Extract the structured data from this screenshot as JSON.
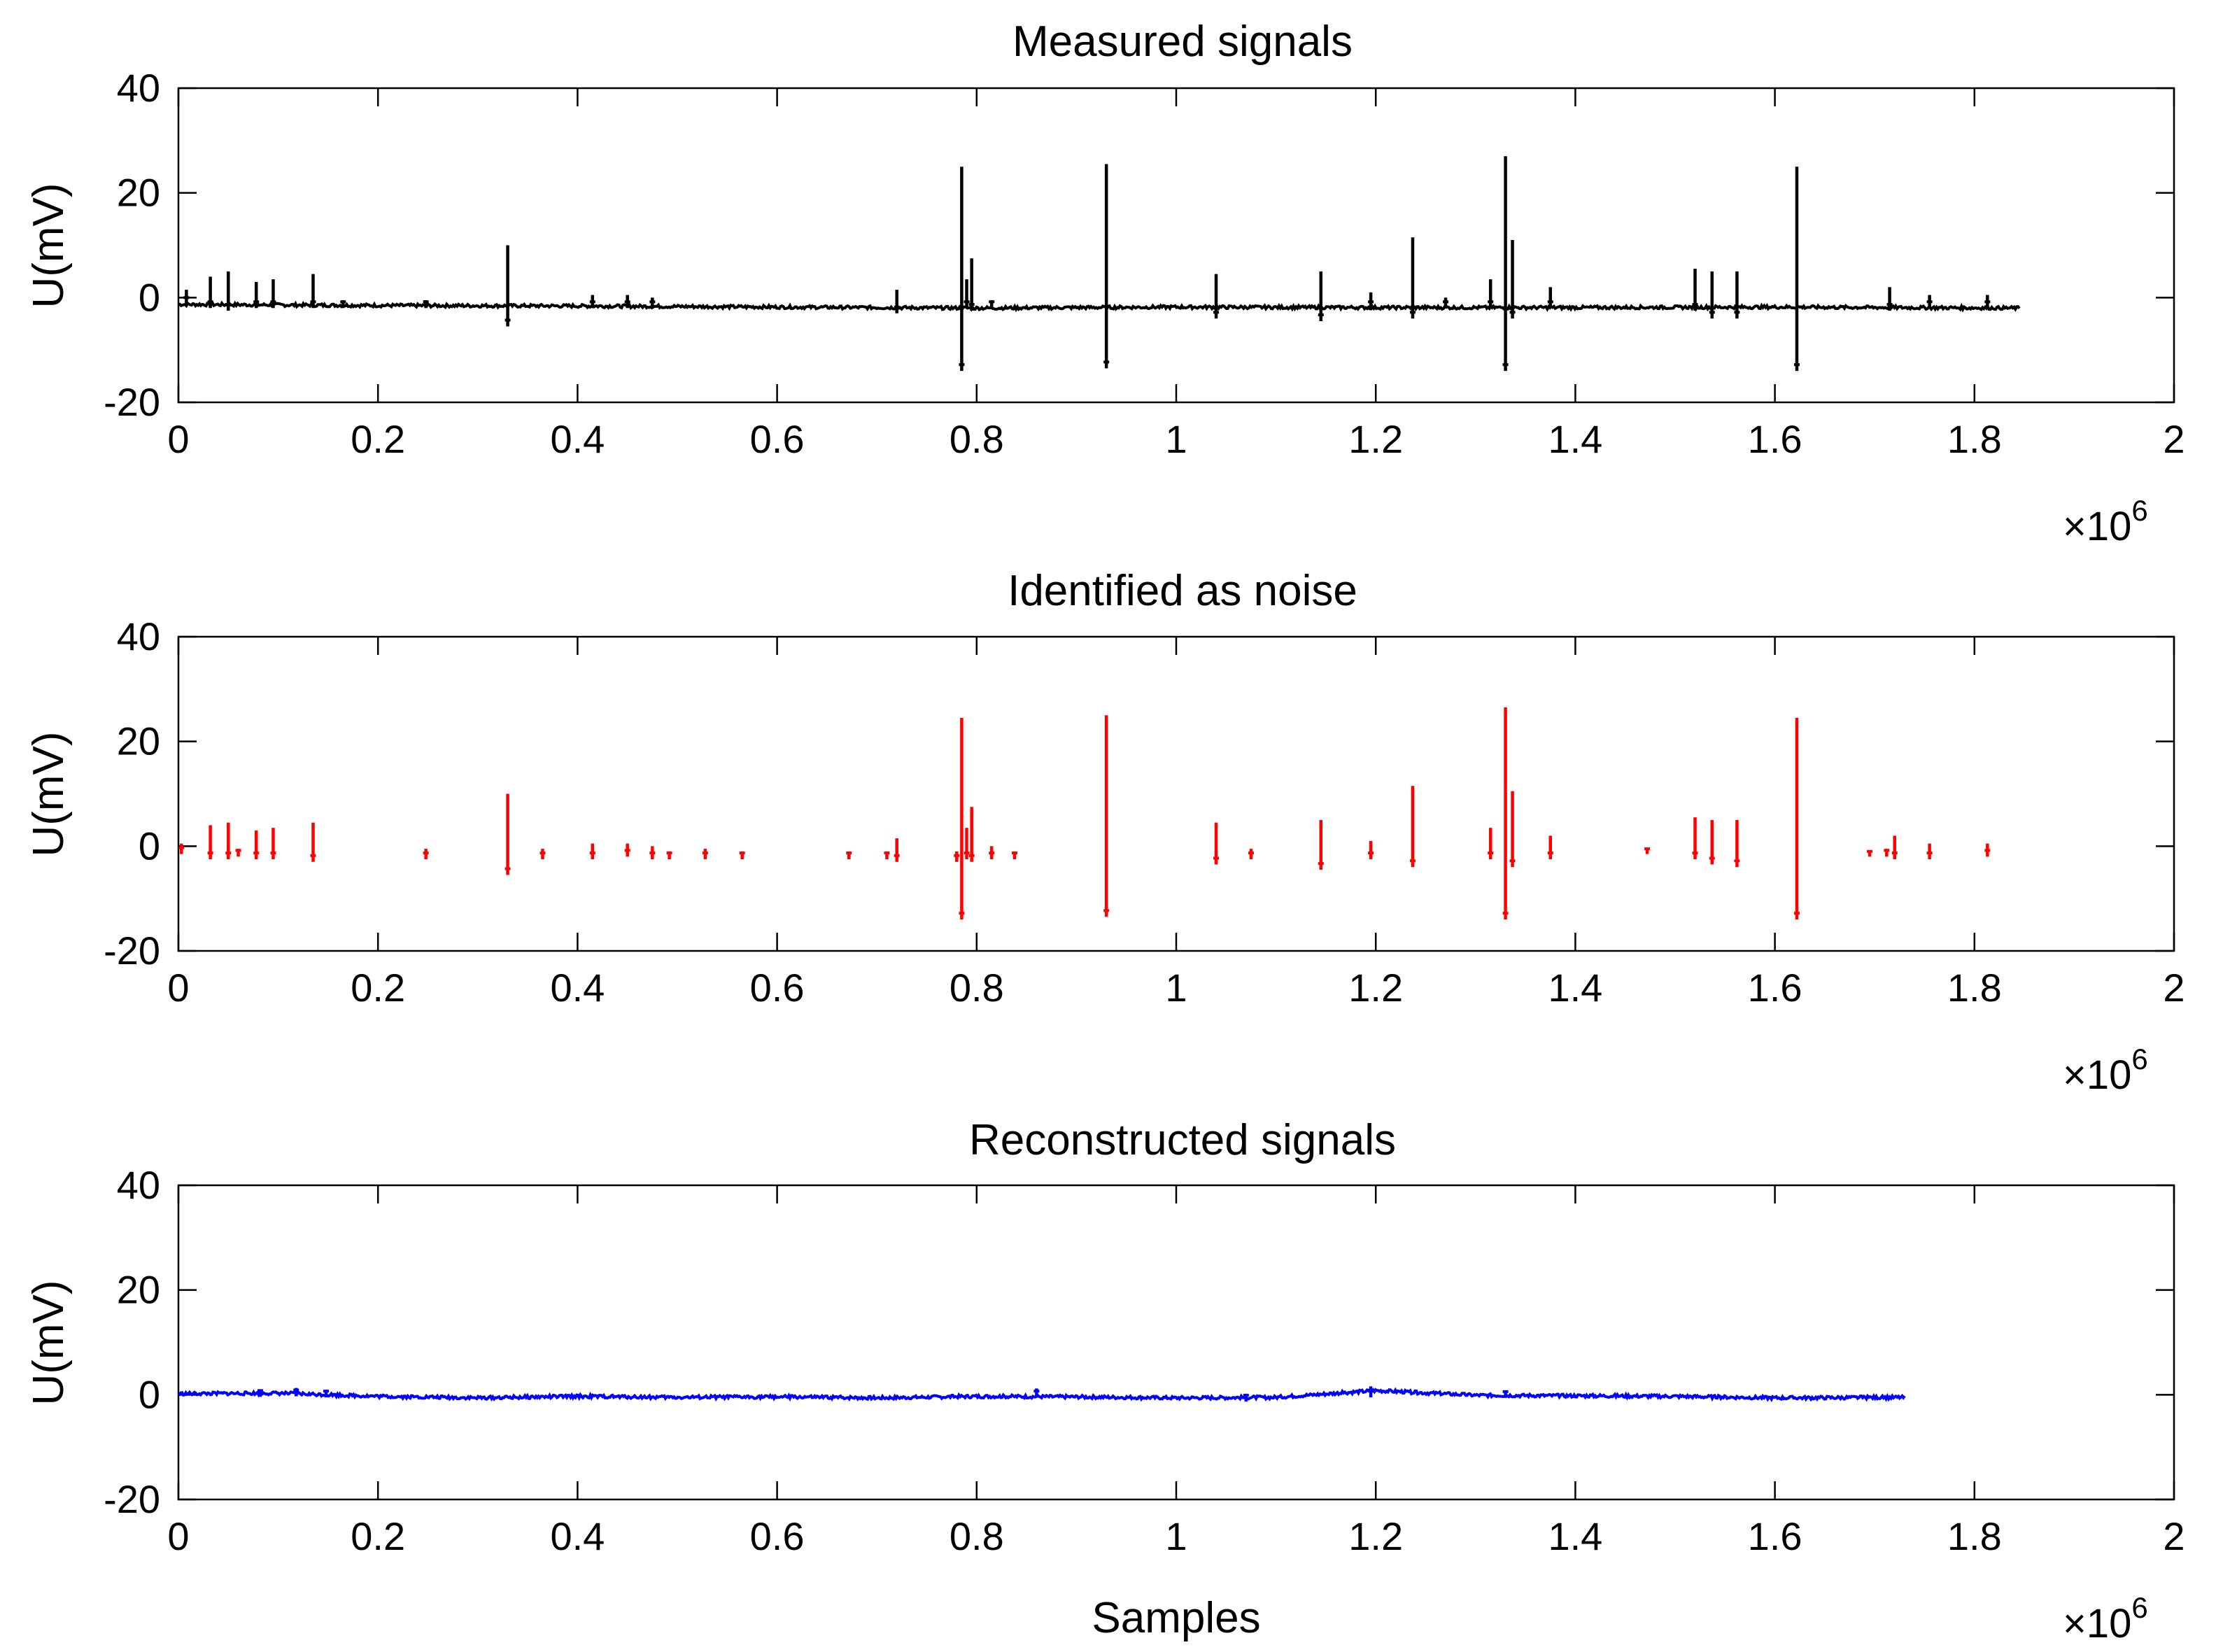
{
  "figure": {
    "shared_xlabel": "Samples",
    "xscale_factor_base": "×10",
    "xscale_factor_exp": "6"
  },
  "chart_data": [
    {
      "type": "line",
      "title": "Measured signals",
      "ylabel": "U(mV)",
      "xlabel": "",
      "xlim": [
        0,
        2
      ],
      "ylim": [
        -20,
        40
      ],
      "xticks": [
        0,
        0.2,
        0.4,
        0.6,
        0.8,
        1,
        1.2,
        1.4,
        1.6,
        1.8,
        2
      ],
      "xtick_labels": [
        "0",
        "0.2",
        "0.4",
        "0.6",
        "0.8",
        "1",
        "1.2",
        "1.4",
        "1.6",
        "1.8",
        "2"
      ],
      "yticks": [
        -20,
        0,
        20,
        40
      ],
      "ytick_labels": [
        "-20",
        "0",
        "20",
        "40"
      ],
      "x_unit_scale": "×10^6",
      "color": "#000000",
      "baseline": [
        [
          0,
          -1.3
        ],
        [
          0.2,
          -1.5
        ],
        [
          0.4,
          -1.6
        ],
        [
          0.6,
          -1.8
        ],
        [
          0.8,
          -2.0
        ],
        [
          1.0,
          -1.8
        ],
        [
          1.2,
          -1.9
        ],
        [
          1.4,
          -1.9
        ],
        [
          1.6,
          -1.8
        ],
        [
          1.845,
          -2.0
        ]
      ],
      "spikes": [
        [
          0.008,
          1.5,
          -1.2
        ],
        [
          0.032,
          4,
          -2
        ],
        [
          0.05,
          5,
          -2.5
        ],
        [
          0.078,
          3,
          -2
        ],
        [
          0.095,
          3.5,
          -2
        ],
        [
          0.135,
          4.5,
          -2
        ],
        [
          0.165,
          -0.5,
          -2
        ],
        [
          0.248,
          -0.5,
          -2
        ],
        [
          0.33,
          10,
          -5.5
        ],
        [
          0.415,
          0.5,
          -2
        ],
        [
          0.45,
          0.5,
          -2
        ],
        [
          0.475,
          0,
          -2
        ],
        [
          0.72,
          1.5,
          -3
        ],
        [
          0.785,
          25,
          -14
        ],
        [
          0.79,
          3.5,
          -2
        ],
        [
          0.795,
          7.5,
          -2.5
        ],
        [
          0.815,
          -0.5,
          -2
        ],
        [
          0.93,
          25.5,
          -13.5
        ],
        [
          1.04,
          4.5,
          -4
        ],
        [
          1.145,
          5,
          -4.5
        ],
        [
          1.195,
          1,
          -2
        ],
        [
          1.237,
          11.5,
          -4
        ],
        [
          1.27,
          0,
          -2
        ],
        [
          1.315,
          3.5,
          -2
        ],
        [
          1.33,
          27,
          -14
        ],
        [
          1.337,
          11,
          -4
        ],
        [
          1.375,
          2,
          -2
        ],
        [
          1.52,
          5.5,
          -2.5
        ],
        [
          1.537,
          5,
          -4
        ],
        [
          1.562,
          5,
          -4
        ],
        [
          1.622,
          25,
          -14
        ],
        [
          1.715,
          2,
          -2.5
        ],
        [
          1.755,
          0.5,
          -2
        ],
        [
          1.813,
          0.5,
          -2
        ]
      ]
    },
    {
      "type": "line",
      "title": "Identified as noise",
      "ylabel": "U(mV)",
      "xlabel": "",
      "xlim": [
        0,
        2
      ],
      "ylim": [
        -20,
        40
      ],
      "xticks": [
        0,
        0.2,
        0.4,
        0.6,
        0.8,
        1,
        1.2,
        1.4,
        1.6,
        1.8,
        2
      ],
      "xtick_labels": [
        "0",
        "0.2",
        "0.4",
        "0.6",
        "0.8",
        "1",
        "1.2",
        "1.4",
        "1.6",
        "1.8",
        "2"
      ],
      "yticks": [
        -20,
        0,
        20,
        40
      ],
      "ytick_labels": [
        "-20",
        "0",
        "20",
        "40"
      ],
      "x_unit_scale": "×10^6",
      "color": "#ff0000",
      "baseline": [],
      "spikes": [
        [
          0.003,
          0.5,
          -1.5
        ],
        [
          0.032,
          4,
          -2.5
        ],
        [
          0.05,
          4.5,
          -2.5
        ],
        [
          0.06,
          -0.5,
          -2
        ],
        [
          0.078,
          3,
          -2.5
        ],
        [
          0.095,
          3.5,
          -2.5
        ],
        [
          0.135,
          4.5,
          -3
        ],
        [
          0.248,
          -0.5,
          -2.5
        ],
        [
          0.33,
          10,
          -5.5
        ],
        [
          0.365,
          -0.5,
          -2.5
        ],
        [
          0.415,
          0.5,
          -2.5
        ],
        [
          0.45,
          0.5,
          -2
        ],
        [
          0.475,
          0,
          -2.5
        ],
        [
          0.492,
          -1,
          -2.5
        ],
        [
          0.528,
          -0.5,
          -2.5
        ],
        [
          0.565,
          -1,
          -2.5
        ],
        [
          0.672,
          -1,
          -2.5
        ],
        [
          0.71,
          -1,
          -2.5
        ],
        [
          0.72,
          1.5,
          -3
        ],
        [
          0.78,
          -1,
          -3
        ],
        [
          0.785,
          24.5,
          -14
        ],
        [
          0.79,
          3.5,
          -2.5
        ],
        [
          0.795,
          7.5,
          -3
        ],
        [
          0.815,
          0,
          -2.5
        ],
        [
          0.838,
          -1,
          -2.5
        ],
        [
          0.93,
          25,
          -13.5
        ],
        [
          1.04,
          4.5,
          -3.5
        ],
        [
          1.075,
          -0.5,
          -2.5
        ],
        [
          1.145,
          5,
          -4.5
        ],
        [
          1.195,
          1,
          -2.5
        ],
        [
          1.237,
          11.5,
          -4
        ],
        [
          1.315,
          3.5,
          -2.5
        ],
        [
          1.33,
          26.5,
          -14
        ],
        [
          1.337,
          10.5,
          -4
        ],
        [
          1.375,
          2,
          -2.5
        ],
        [
          1.472,
          -0.5,
          -1.5
        ],
        [
          1.52,
          5.5,
          -2.5
        ],
        [
          1.537,
          5,
          -3.5
        ],
        [
          1.562,
          5,
          -4
        ],
        [
          1.622,
          24.5,
          -14
        ],
        [
          1.695,
          -1,
          -2
        ],
        [
          1.712,
          -0.5,
          -2
        ],
        [
          1.72,
          2,
          -2.5
        ],
        [
          1.755,
          0.5,
          -2.5
        ],
        [
          1.813,
          0.5,
          -2
        ]
      ]
    },
    {
      "type": "line",
      "title": "Reconstructed signals",
      "ylabel": "U(mV)",
      "xlabel": "Samples",
      "xlim": [
        0,
        2
      ],
      "ylim": [
        -20,
        40
      ],
      "xticks": [
        0,
        0.2,
        0.4,
        0.6,
        0.8,
        1,
        1.2,
        1.4,
        1.6,
        1.8,
        2
      ],
      "xtick_labels": [
        "0",
        "0.2",
        "0.4",
        "0.6",
        "0.8",
        "1",
        "1.2",
        "1.4",
        "1.6",
        "1.8",
        "2"
      ],
      "yticks": [
        -20,
        0,
        20,
        40
      ],
      "ytick_labels": [
        "-20",
        "0",
        "20",
        "40"
      ],
      "x_unit_scale": "×10^6",
      "color": "#0000ff",
      "baseline": [
        [
          0,
          0.2
        ],
        [
          0.1,
          0.3
        ],
        [
          0.2,
          -0.3
        ],
        [
          0.3,
          -0.6
        ],
        [
          0.4,
          -0.3
        ],
        [
          0.5,
          -0.5
        ],
        [
          0.6,
          -0.4
        ],
        [
          0.7,
          -0.6
        ],
        [
          0.8,
          -0.3
        ],
        [
          0.9,
          -0.4
        ],
        [
          1.0,
          -0.6
        ],
        [
          1.1,
          -0.5
        ],
        [
          1.2,
          0.8
        ],
        [
          1.3,
          -0.1
        ],
        [
          1.4,
          -0.2
        ],
        [
          1.5,
          -0.3
        ],
        [
          1.6,
          -0.6
        ],
        [
          1.73,
          -0.5
        ]
      ],
      "spikes": [
        [
          0.082,
          0.9,
          -0.4
        ],
        [
          0.118,
          1.3,
          -0.3
        ],
        [
          0.148,
          0.9,
          -0.5
        ],
        [
          0.86,
          1.2,
          -0.5
        ],
        [
          1.07,
          0.2,
          -1.3
        ],
        [
          1.195,
          1.6,
          -0.5
        ],
        [
          1.33,
          0.6,
          -0.6
        ]
      ]
    }
  ]
}
